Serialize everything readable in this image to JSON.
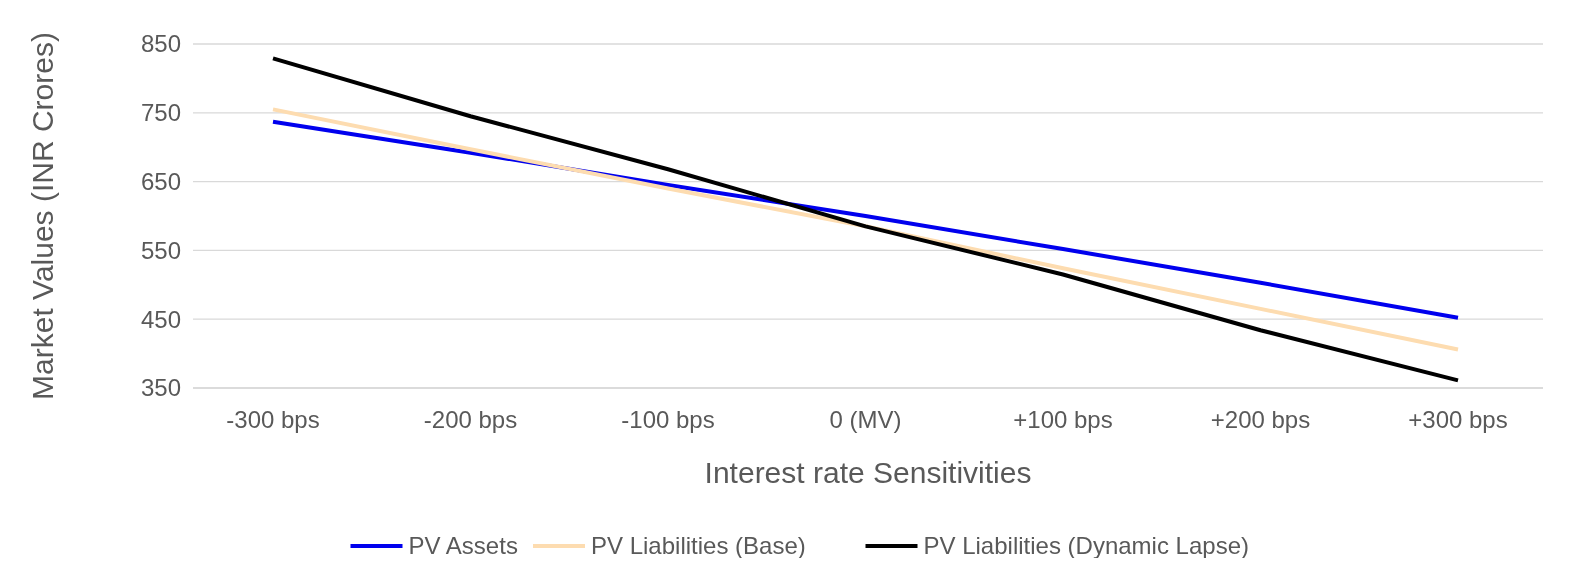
{
  "chart_data": {
    "type": "line",
    "xlabel": "Interest rate Sensitivities",
    "ylabel": "Market Values (INR Crores)",
    "categories": [
      "-300 bps",
      "-200 bps",
      "-100 bps",
      "0 (MV)",
      "+100 bps",
      "+200 bps",
      "+300 bps"
    ],
    "series": [
      {
        "name": "PV Assets",
        "color": "#0000ee",
        "values": [
          737,
          692,
          645,
          600,
          552,
          503,
          452
        ]
      },
      {
        "name": "PV Liabilities (Base)",
        "color": "#fddcb0",
        "values": [
          755,
          697,
          640,
          585,
          524,
          465,
          406
        ]
      },
      {
        "name": "PV Liabilities (Dynamic Lapse)",
        "color": "#000000",
        "values": [
          829,
          745,
          668,
          585,
          515,
          434,
          361
        ]
      }
    ],
    "ylim": [
      350,
      850
    ],
    "yticks": [
      350,
      450,
      550,
      650,
      750,
      850
    ],
    "grid": "y",
    "legend": "bottom",
    "marker": "none",
    "line_style": "solid"
  }
}
